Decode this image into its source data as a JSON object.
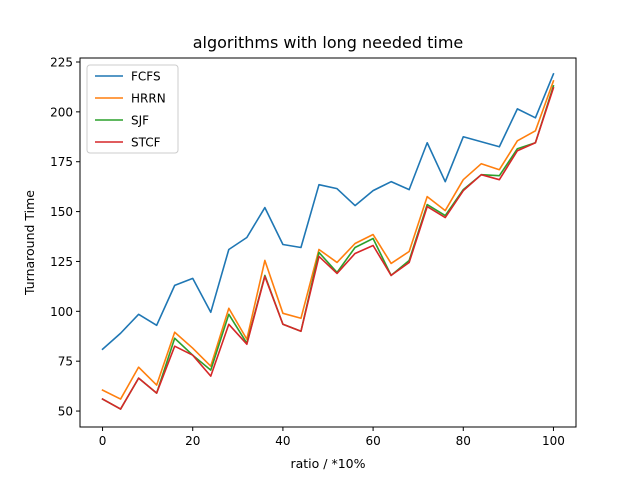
{
  "chart_data": {
    "type": "line",
    "title": "algorithms with long needed time",
    "xlabel": "ratio / *10%",
    "ylabel": "Turnaround Time",
    "xlim": [
      -5,
      105
    ],
    "ylim": [
      42,
      227
    ],
    "xticks": [
      0,
      20,
      40,
      60,
      80,
      100
    ],
    "yticks": [
      50,
      75,
      100,
      125,
      150,
      175,
      200,
      225
    ],
    "grid": false,
    "legend_position": "top-left",
    "x": [
      0,
      4,
      8,
      12,
      16,
      20,
      24,
      28,
      32,
      36,
      40,
      44,
      48,
      52,
      56,
      60,
      64,
      68,
      72,
      76,
      80,
      84,
      88,
      92,
      96,
      100
    ],
    "series": [
      {
        "name": "FCFS",
        "color": "#1f77b4",
        "values": [
          81,
          89,
          98.5,
          93,
          113,
          116.5,
          99.5,
          131,
          137,
          152,
          133.5,
          132,
          163.5,
          161.5,
          153,
          160.5,
          165,
          161,
          184.5,
          165,
          187.5,
          185,
          182.5,
          201.5,
          197,
          219
        ]
      },
      {
        "name": "HRRN",
        "color": "#ff7f0e",
        "values": [
          60.5,
          56,
          72,
          63,
          89.5,
          81.5,
          72.5,
          101.5,
          86,
          125.5,
          99,
          96.5,
          131,
          124.5,
          134,
          138.5,
          124,
          130,
          157.5,
          150.5,
          166,
          174,
          171,
          185.5,
          190.5,
          215.5
        ]
      },
      {
        "name": "SJF",
        "color": "#2ca02c",
        "values": [
          56,
          51,
          66.5,
          59,
          86.5,
          78,
          70.5,
          98.5,
          84,
          118,
          93.5,
          90,
          129.5,
          119.5,
          132,
          136.5,
          118,
          125.5,
          153.5,
          148,
          161,
          168.5,
          168,
          181.5,
          184.5,
          213
        ]
      },
      {
        "name": "STCF",
        "color": "#d62728",
        "values": [
          56,
          51,
          66.5,
          59,
          82.5,
          78,
          67.5,
          93.5,
          83.5,
          117.5,
          93.5,
          90,
          127.5,
          119,
          129,
          133,
          118,
          124.5,
          152.5,
          147,
          160.5,
          168.5,
          166,
          180.5,
          184.5,
          212
        ]
      }
    ]
  }
}
